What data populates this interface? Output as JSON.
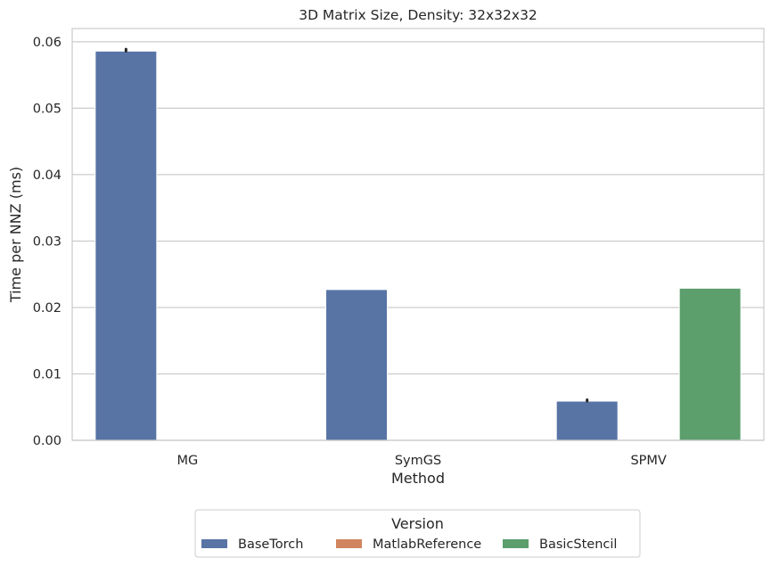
{
  "chart_data": {
    "type": "bar",
    "title": "3D Matrix Size, Density: 32x32x32",
    "xlabel": "Method",
    "ylabel": "Time per NNZ (ms)",
    "categories": [
      "MG",
      "SymGS",
      "SPMV"
    ],
    "ylim": [
      0,
      0.062
    ],
    "yticks": [
      "0.00",
      "0.01",
      "0.02",
      "0.03",
      "0.04",
      "0.05",
      "0.06"
    ],
    "ytick_values": [
      0,
      0.01,
      0.02,
      0.03,
      0.04,
      0.05,
      0.06
    ],
    "grid": "horizontal",
    "legend": {
      "title": "Version",
      "placement": "below-center"
    },
    "series": [
      {
        "name": "BaseTorch",
        "color": "#5874a5",
        "values": [
          0.0586,
          0.0227,
          0.0059
        ],
        "err_high": [
          0.0589,
          null,
          0.0061
        ]
      },
      {
        "name": "MatlabReference",
        "color": "#d0855f",
        "values": [
          null,
          null,
          null
        ],
        "err_high": [
          null,
          null,
          null
        ]
      },
      {
        "name": "BasicStencil",
        "color": "#5c9e6c",
        "values": [
          null,
          null,
          0.0229
        ],
        "err_high": [
          null,
          null,
          null
        ]
      }
    ]
  }
}
